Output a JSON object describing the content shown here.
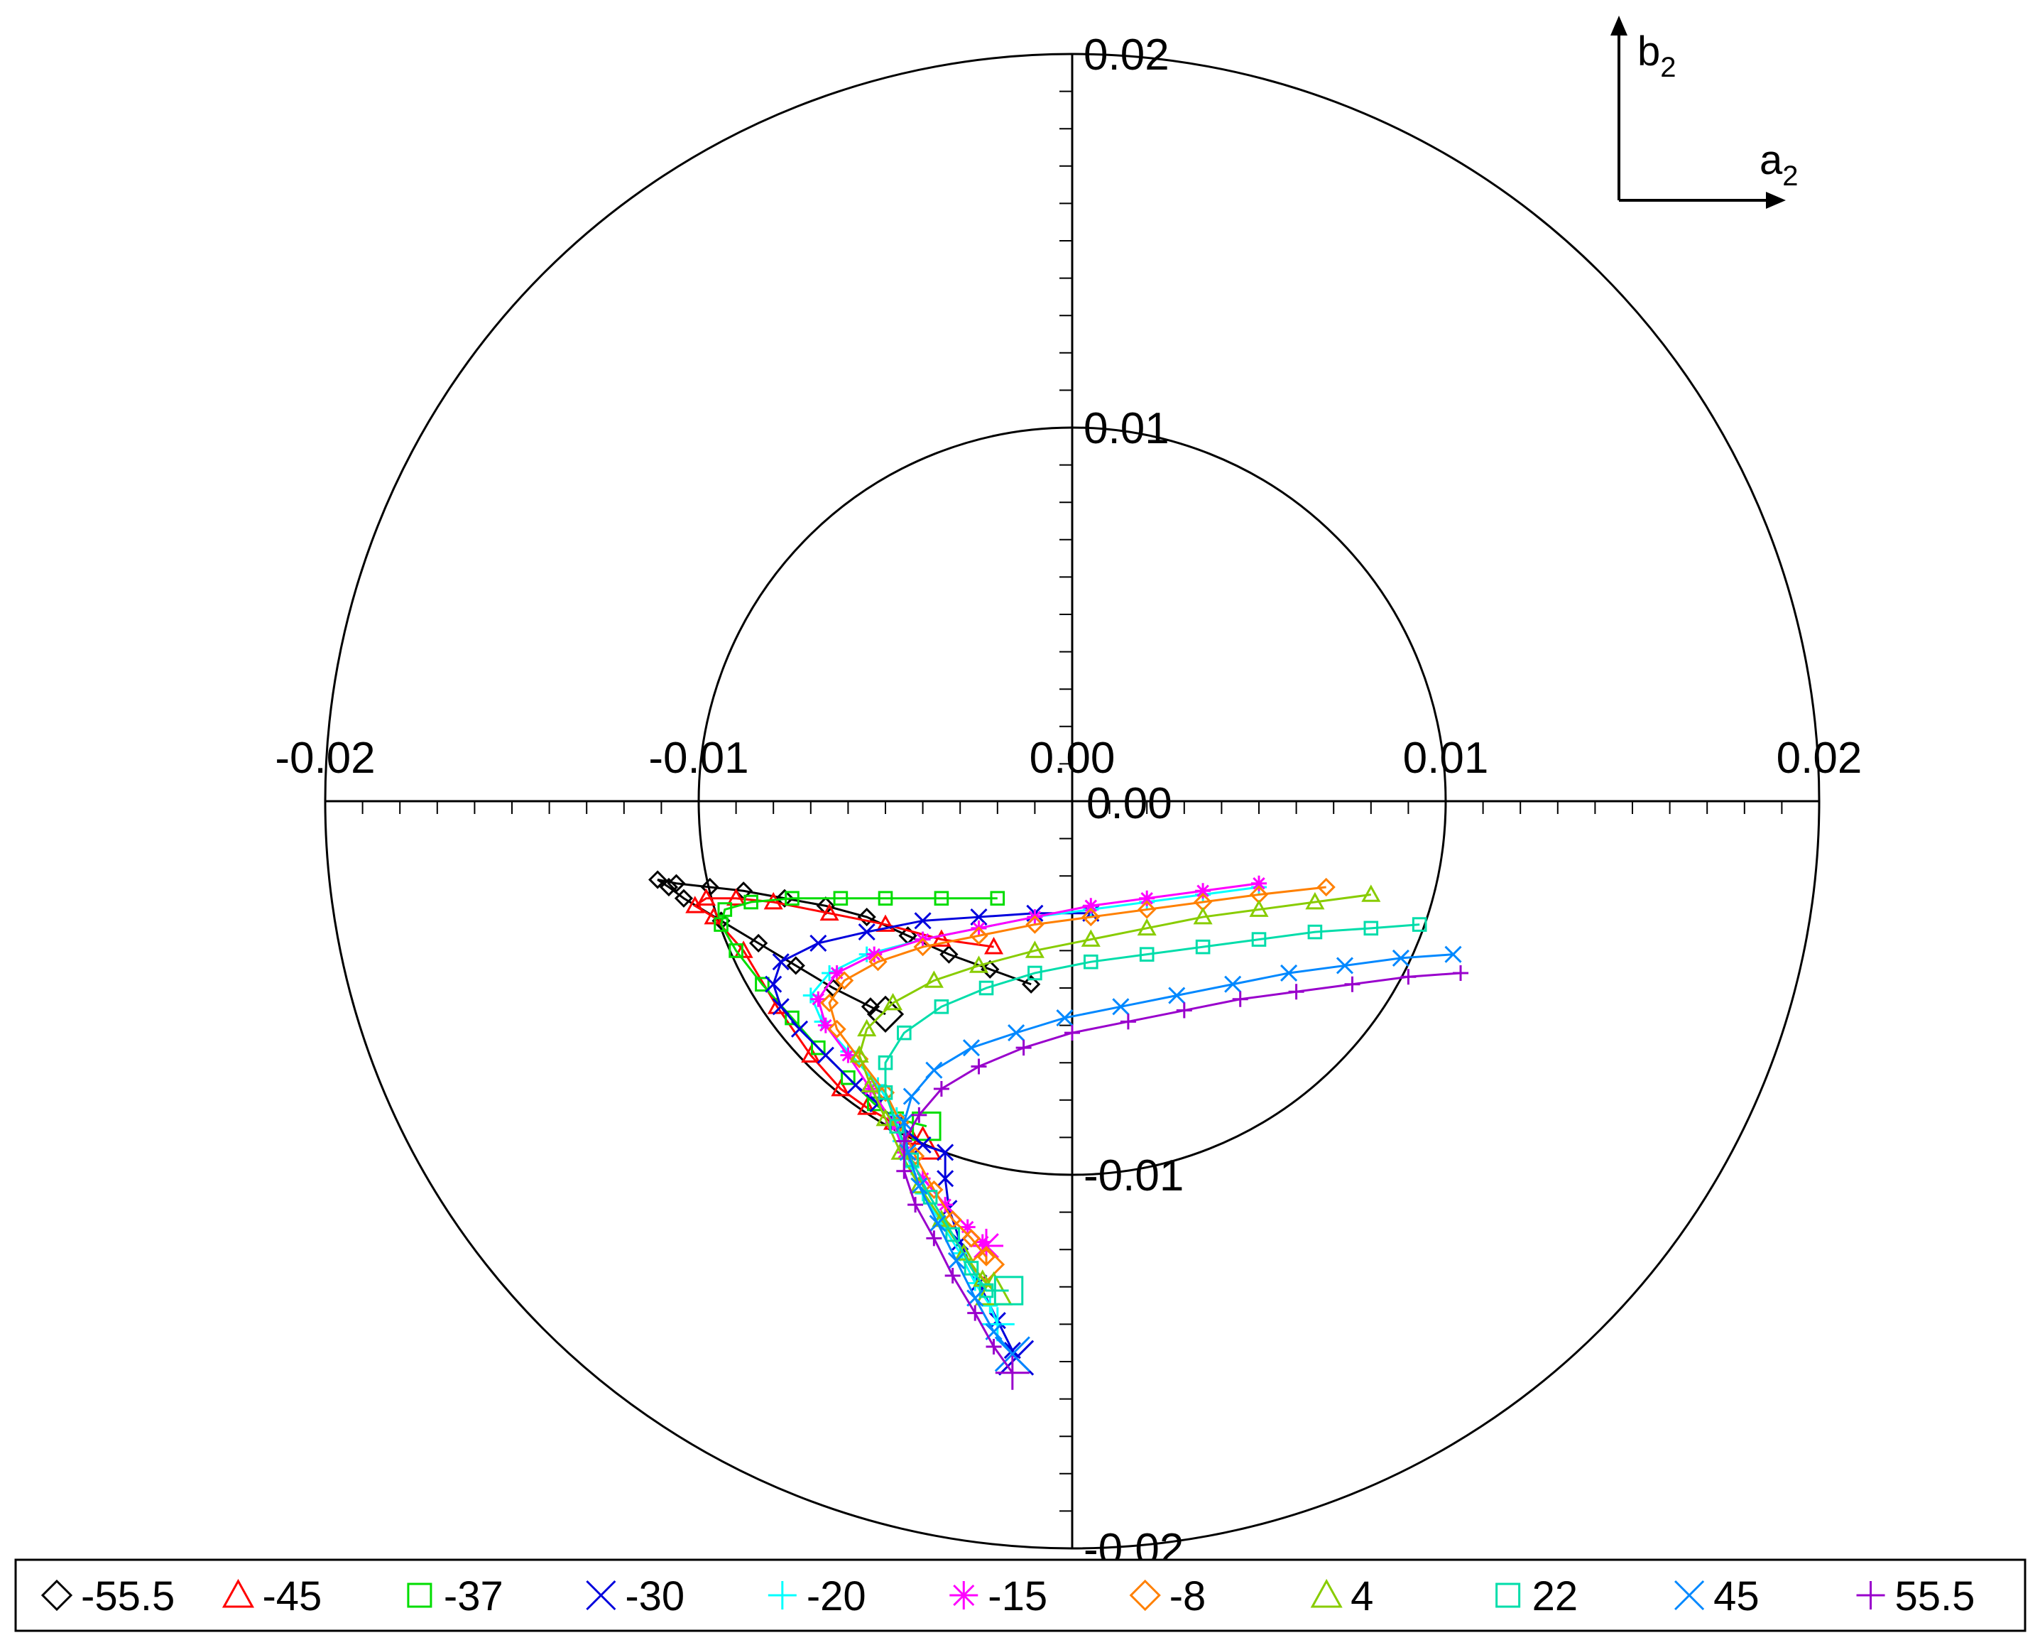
{
  "chart_data": {
    "type": "scatter",
    "coordinate_system": "polar-cartesian",
    "x_axis_name": "a",
    "x_axis_subscript": "2",
    "y_axis_name": "b",
    "y_axis_subscript": "2",
    "xlim": [
      -0.02,
      0.02
    ],
    "ylim": [
      -0.02,
      0.02
    ],
    "circles": [
      0.01,
      0.02
    ],
    "x_tick_labels": [
      {
        "value": -0.02,
        "label": "-0.02"
      },
      {
        "value": -0.01,
        "label": "-0.01"
      },
      {
        "value": 0.0,
        "label": "0.00"
      },
      {
        "value": 0.01,
        "label": "0.01"
      },
      {
        "value": 0.02,
        "label": "0.02"
      }
    ],
    "y_tick_labels": [
      {
        "value": 0.02,
        "label": "0.02"
      },
      {
        "value": 0.01,
        "label": "0.01"
      },
      {
        "value": 0.0,
        "label": "0.00"
      },
      {
        "value": -0.01,
        "label": "-0.01"
      },
      {
        "value": -0.02,
        "label": "-0.02"
      }
    ],
    "legend_position": "bottom",
    "series": [
      {
        "name": "-55.5",
        "color": "#000000",
        "marker": "diamond",
        "points": [
          [
            -0.0011,
            -0.0049
          ],
          [
            -0.0022,
            -0.0045
          ],
          [
            -0.0033,
            -0.0041
          ],
          [
            -0.0044,
            -0.0036
          ],
          [
            -0.0055,
            -0.0031
          ],
          [
            -0.0066,
            -0.0028
          ],
          [
            -0.0077,
            -0.0026
          ],
          [
            -0.0088,
            -0.0024
          ],
          [
            -0.0097,
            -0.0023
          ],
          [
            -0.0106,
            -0.0022
          ],
          [
            -0.0111,
            -0.0021
          ],
          [
            -0.0108,
            -0.0023
          ],
          [
            -0.0104,
            -0.0026
          ],
          [
            -0.0094,
            -0.0032
          ],
          [
            -0.0084,
            -0.0038
          ],
          [
            -0.0074,
            -0.0044
          ],
          [
            -0.0064,
            -0.005
          ],
          [
            -0.0054,
            -0.0055
          ],
          [
            -0.005,
            -0.0057
          ]
        ]
      },
      {
        "name": "-45",
        "color": "#ff0000",
        "marker": "triangle",
        "points": [
          [
            -0.0021,
            -0.0039
          ],
          [
            -0.0035,
            -0.0037
          ],
          [
            -0.005,
            -0.0033
          ],
          [
            -0.0065,
            -0.003
          ],
          [
            -0.008,
            -0.0027
          ],
          [
            -0.009,
            -0.0026
          ],
          [
            -0.0098,
            -0.0026
          ],
          [
            -0.0101,
            -0.0028
          ],
          [
            -0.0096,
            -0.0031
          ],
          [
            -0.0088,
            -0.004
          ],
          [
            -0.0079,
            -0.0055
          ],
          [
            -0.007,
            -0.0068
          ],
          [
            -0.0062,
            -0.0077
          ],
          [
            -0.0055,
            -0.0082
          ],
          [
            -0.0048,
            -0.0086
          ],
          [
            -0.0043,
            -0.009
          ],
          [
            -0.004,
            -0.0092
          ]
        ]
      },
      {
        "name": "-37",
        "color": "#00dd00",
        "marker": "square",
        "points": [
          [
            -0.002,
            -0.0026
          ],
          [
            -0.0035,
            -0.0026
          ],
          [
            -0.005,
            -0.0026
          ],
          [
            -0.0062,
            -0.0026
          ],
          [
            -0.0075,
            -0.0026
          ],
          [
            -0.0086,
            -0.0027
          ],
          [
            -0.0093,
            -0.0029
          ],
          [
            -0.0094,
            -0.0033
          ],
          [
            -0.009,
            -0.004
          ],
          [
            -0.0083,
            -0.0049
          ],
          [
            -0.0075,
            -0.0058
          ],
          [
            -0.0068,
            -0.0066
          ],
          [
            -0.006,
            -0.0074
          ],
          [
            -0.0053,
            -0.0081
          ],
          [
            -0.0047,
            -0.0085
          ],
          [
            -0.0039,
            -0.0087
          ]
        ]
      },
      {
        "name": "-30",
        "color": "#0000dd",
        "marker": "x",
        "points": [
          [
            0.0005,
            -0.003
          ],
          [
            -0.001,
            -0.003
          ],
          [
            -0.0025,
            -0.0031
          ],
          [
            -0.004,
            -0.0032
          ],
          [
            -0.0055,
            -0.0035
          ],
          [
            -0.0068,
            -0.0038
          ],
          [
            -0.0078,
            -0.0043
          ],
          [
            -0.008,
            -0.0049
          ],
          [
            -0.0078,
            -0.0055
          ],
          [
            -0.0073,
            -0.0061
          ],
          [
            -0.0066,
            -0.0068
          ],
          [
            -0.0058,
            -0.0076
          ],
          [
            -0.0052,
            -0.0081
          ],
          [
            -0.0047,
            -0.0086
          ],
          [
            -0.004,
            -0.0092
          ],
          [
            -0.0034,
            -0.0094
          ],
          [
            -0.0034,
            -0.0101
          ],
          [
            -0.0033,
            -0.0109
          ],
          [
            -0.003,
            -0.0118
          ],
          [
            -0.0025,
            -0.0129
          ],
          [
            -0.002,
            -0.0139
          ],
          [
            -0.0016,
            -0.0147
          ],
          [
            -0.0015,
            -0.0149
          ]
        ]
      },
      {
        "name": "-20",
        "color": "#00ffff",
        "marker": "plus",
        "points": [
          [
            0.005,
            -0.0023
          ],
          [
            0.0035,
            -0.0025
          ],
          [
            0.002,
            -0.0027
          ],
          [
            0.0005,
            -0.0029
          ],
          [
            -0.001,
            -0.0031
          ],
          [
            -0.0025,
            -0.0034
          ],
          [
            -0.004,
            -0.0037
          ],
          [
            -0.0055,
            -0.0041
          ],
          [
            -0.0065,
            -0.0046
          ],
          [
            -0.007,
            -0.0052
          ],
          [
            -0.0067,
            -0.0059
          ],
          [
            -0.006,
            -0.0067
          ],
          [
            -0.0052,
            -0.0076
          ],
          [
            -0.0047,
            -0.0084
          ],
          [
            -0.0046,
            -0.0091
          ],
          [
            -0.0043,
            -0.0098
          ],
          [
            -0.004,
            -0.0105
          ],
          [
            -0.0035,
            -0.0113
          ],
          [
            -0.003,
            -0.0121
          ],
          [
            -0.0026,
            -0.0129
          ],
          [
            -0.0022,
            -0.0135
          ],
          [
            -0.002,
            -0.014
          ]
        ]
      },
      {
        "name": "-15",
        "color": "#ff00ff",
        "marker": "star",
        "points": [
          [
            0.005,
            -0.0022
          ],
          [
            0.0035,
            -0.0024
          ],
          [
            0.002,
            -0.0026
          ],
          [
            0.0005,
            -0.0028
          ],
          [
            -0.001,
            -0.0031
          ],
          [
            -0.0025,
            -0.0034
          ],
          [
            -0.004,
            -0.0037
          ],
          [
            -0.0053,
            -0.0041
          ],
          [
            -0.0063,
            -0.0046
          ],
          [
            -0.0068,
            -0.0053
          ],
          [
            -0.0066,
            -0.006
          ],
          [
            -0.006,
            -0.0068
          ],
          [
            -0.0054,
            -0.0077
          ],
          [
            -0.0048,
            -0.0086
          ],
          [
            -0.0045,
            -0.0094
          ],
          [
            -0.004,
            -0.0101
          ],
          [
            -0.0034,
            -0.0108
          ],
          [
            -0.0028,
            -0.0114
          ],
          [
            -0.0024,
            -0.0118
          ],
          [
            -0.0023,
            -0.0119
          ]
        ]
      },
      {
        "name": "-8",
        "color": "#ff8000",
        "marker": "diamond",
        "points": [
          [
            0.0068,
            -0.0023
          ],
          [
            0.005,
            -0.0025
          ],
          [
            0.0035,
            -0.0027
          ],
          [
            0.002,
            -0.0029
          ],
          [
            0.0005,
            -0.0031
          ],
          [
            -0.001,
            -0.0033
          ],
          [
            -0.0025,
            -0.0036
          ],
          [
            -0.004,
            -0.0039
          ],
          [
            -0.0052,
            -0.0043
          ],
          [
            -0.0061,
            -0.0048
          ],
          [
            -0.0065,
            -0.0054
          ],
          [
            -0.0063,
            -0.0061
          ],
          [
            -0.0057,
            -0.0069
          ],
          [
            -0.005,
            -0.0078
          ],
          [
            -0.0046,
            -0.0086
          ],
          [
            -0.0042,
            -0.0095
          ],
          [
            -0.0037,
            -0.0104
          ],
          [
            -0.0032,
            -0.0112
          ],
          [
            -0.0027,
            -0.0117
          ],
          [
            -0.0023,
            -0.0122
          ],
          [
            -0.0023,
            -0.0124
          ]
        ]
      },
      {
        "name": "4",
        "color": "#88cc00",
        "marker": "triangle",
        "points": [
          [
            0.008,
            -0.0025
          ],
          [
            0.0065,
            -0.0027
          ],
          [
            0.005,
            -0.0029
          ],
          [
            0.0035,
            -0.0031
          ],
          [
            0.002,
            -0.0034
          ],
          [
            0.0005,
            -0.0037
          ],
          [
            -0.001,
            -0.004
          ],
          [
            -0.0025,
            -0.0044
          ],
          [
            -0.0037,
            -0.0048
          ],
          [
            -0.0048,
            -0.0054
          ],
          [
            -0.0055,
            -0.0061
          ],
          [
            -0.0057,
            -0.0068
          ],
          [
            -0.0054,
            -0.0076
          ],
          [
            -0.005,
            -0.0085
          ],
          [
            -0.0046,
            -0.0094
          ],
          [
            -0.0041,
            -0.0103
          ],
          [
            -0.0035,
            -0.0112
          ],
          [
            -0.0029,
            -0.0121
          ],
          [
            -0.0024,
            -0.0128
          ],
          [
            -0.0021,
            -0.0131
          ]
        ]
      },
      {
        "name": "22",
        "color": "#00ddaa",
        "marker": "square",
        "points": [
          [
            0.0093,
            -0.0033
          ],
          [
            0.008,
            -0.0034
          ],
          [
            0.0065,
            -0.0035
          ],
          [
            0.005,
            -0.0037
          ],
          [
            0.0035,
            -0.0039
          ],
          [
            0.002,
            -0.0041
          ],
          [
            0.0005,
            -0.0043
          ],
          [
            -0.001,
            -0.0046
          ],
          [
            -0.0023,
            -0.005
          ],
          [
            -0.0035,
            -0.0055
          ],
          [
            -0.0045,
            -0.0062
          ],
          [
            -0.005,
            -0.007
          ],
          [
            -0.005,
            -0.0078
          ],
          [
            -0.0047,
            -0.0087
          ],
          [
            -0.0043,
            -0.0096
          ],
          [
            -0.0038,
            -0.0106
          ],
          [
            -0.0032,
            -0.0116
          ],
          [
            -0.0027,
            -0.0125
          ],
          [
            -0.0023,
            -0.0131
          ],
          [
            -0.0017,
            -0.0131
          ]
        ]
      },
      {
        "name": "45",
        "color": "#0088ff",
        "marker": "x",
        "points": [
          [
            0.0102,
            -0.0041
          ],
          [
            0.0088,
            -0.0042
          ],
          [
            0.0073,
            -0.0044
          ],
          [
            0.0058,
            -0.0046
          ],
          [
            0.0043,
            -0.0049
          ],
          [
            0.0028,
            -0.0052
          ],
          [
            0.0013,
            -0.0055
          ],
          [
            -0.0002,
            -0.0058
          ],
          [
            -0.0015,
            -0.0062
          ],
          [
            -0.0027,
            -0.0066
          ],
          [
            -0.0037,
            -0.0072
          ],
          [
            -0.0043,
            -0.0079
          ],
          [
            -0.0045,
            -0.0086
          ],
          [
            -0.0044,
            -0.0094
          ],
          [
            -0.0041,
            -0.0103
          ],
          [
            -0.0036,
            -0.0113
          ],
          [
            -0.0031,
            -0.0123
          ],
          [
            -0.0026,
            -0.0133
          ],
          [
            -0.0021,
            -0.0142
          ],
          [
            -0.0016,
            -0.0148
          ]
        ]
      },
      {
        "name": "55.5",
        "color": "#9900cc",
        "marker": "plus",
        "points": [
          [
            0.0104,
            -0.0046
          ],
          [
            0.009,
            -0.0047
          ],
          [
            0.0075,
            -0.0049
          ],
          [
            0.006,
            -0.0051
          ],
          [
            0.0045,
            -0.0053
          ],
          [
            0.003,
            -0.0056
          ],
          [
            0.0015,
            -0.0059
          ],
          [
            0.0,
            -0.0062
          ],
          [
            -0.0013,
            -0.0066
          ],
          [
            -0.0025,
            -0.0071
          ],
          [
            -0.0035,
            -0.0077
          ],
          [
            -0.0041,
            -0.0084
          ],
          [
            -0.0045,
            -0.0091
          ],
          [
            -0.0045,
            -0.0099
          ],
          [
            -0.0042,
            -0.0108
          ],
          [
            -0.0037,
            -0.0117
          ],
          [
            -0.0032,
            -0.0127
          ],
          [
            -0.0026,
            -0.0137
          ],
          [
            -0.0021,
            -0.0146
          ],
          [
            -0.0016,
            -0.0153
          ]
        ]
      }
    ]
  }
}
